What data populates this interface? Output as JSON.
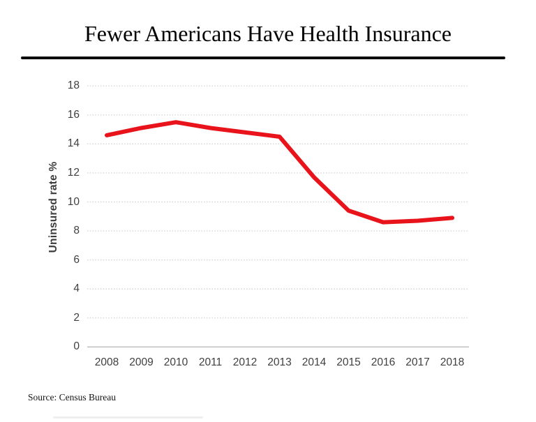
{
  "title": "Fewer Americans Have Health Insurance",
  "source_note": "Source: Census Bureau",
  "colors": {
    "line": "#e8131b",
    "gridline": "#d2d2d2",
    "axis_line": "#bfbfbf",
    "tick_label": "#3f3f3f",
    "title": "#000000"
  },
  "chart_data": {
    "type": "line",
    "title": "Fewer Americans Have Health Insurance",
    "categories": [
      "2008",
      "2009",
      "2010",
      "2011",
      "2012",
      "2013",
      "2014",
      "2015",
      "2016",
      "2017",
      "2018"
    ],
    "values": [
      14.6,
      15.1,
      15.5,
      15.1,
      14.8,
      14.5,
      11.7,
      9.4,
      8.6,
      8.7,
      8.9
    ],
    "series_name": "Uninsured rate %",
    "xlabel": "",
    "ylabel": "Uninsured rate %",
    "ylim": [
      0,
      18
    ],
    "yticks": [
      0,
      2,
      4,
      6,
      8,
      10,
      12,
      14,
      16,
      18
    ],
    "grid": "horizontal-dotted",
    "legend": "none",
    "source": "Source: Census Bureau"
  }
}
